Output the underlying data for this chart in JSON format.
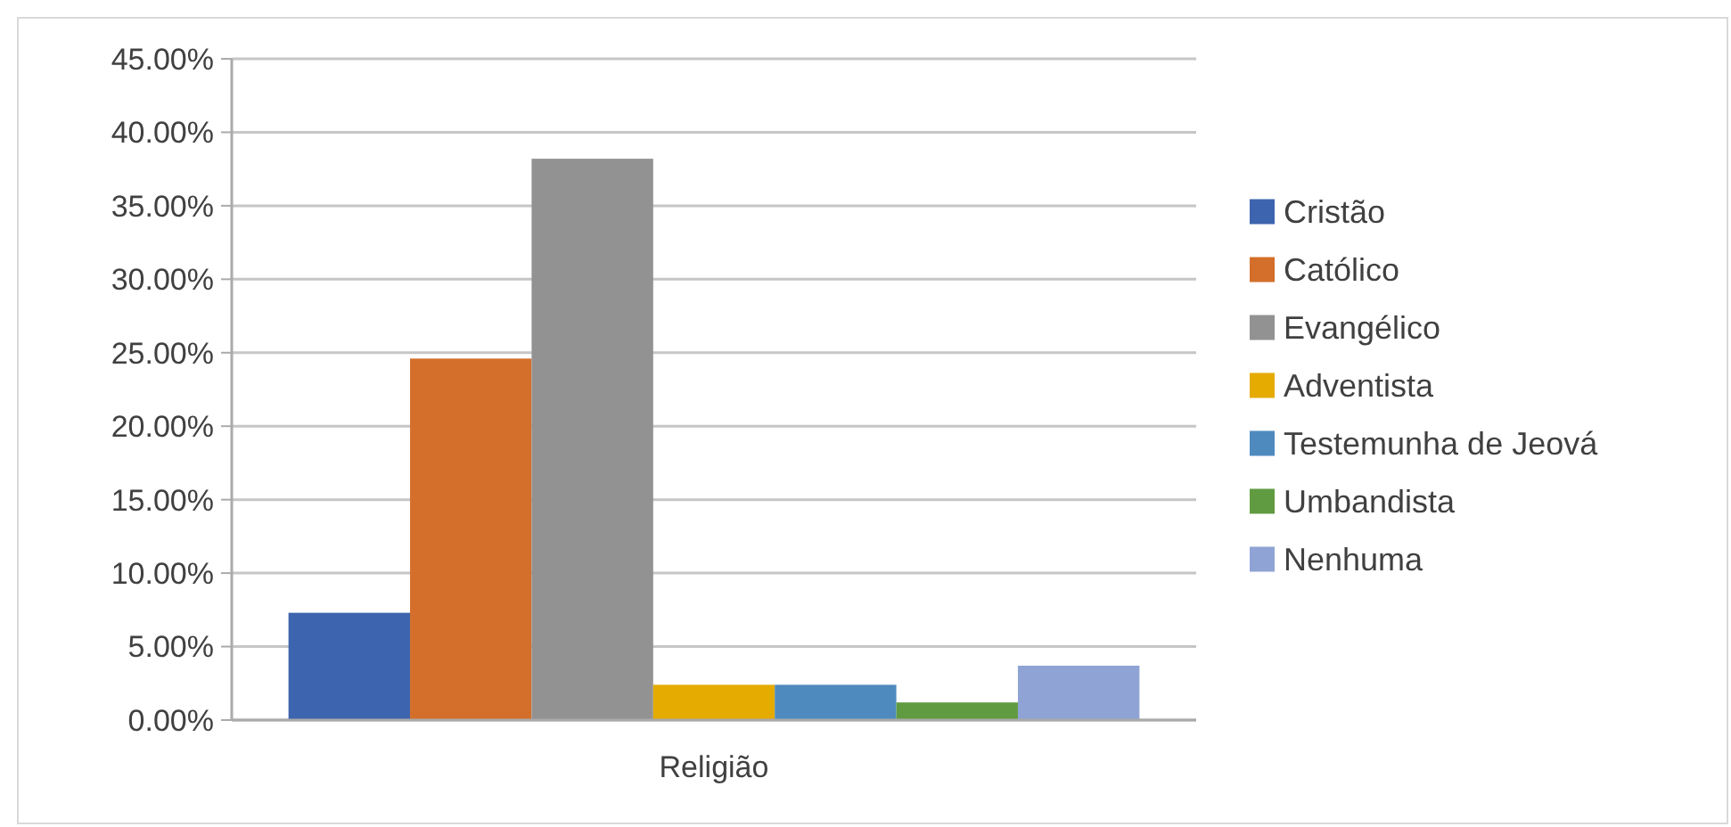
{
  "chart_data": {
    "type": "bar",
    "categories": [
      "Religião"
    ],
    "series": [
      {
        "name": "Cristão",
        "color": "#3d64ae",
        "values": [
          7.3
        ]
      },
      {
        "name": "Católico",
        "color": "#d36f2b",
        "values": [
          24.6
        ]
      },
      {
        "name": "Evangélico",
        "color": "#929292",
        "values": [
          38.2
        ]
      },
      {
        "name": "Adventista",
        "color": "#e5ab00",
        "values": [
          2.4
        ]
      },
      {
        "name": "Testemunha de Jeová",
        "color": "#4f8abf",
        "values": [
          2.4
        ]
      },
      {
        "name": "Umbandista",
        "color": "#619b41",
        "values": [
          1.2
        ]
      },
      {
        "name": "Nenhuma",
        "color": "#8fa3d4",
        "values": [
          3.7
        ]
      }
    ],
    "ylim": [
      0,
      45
    ],
    "yticks": [
      {
        "value": 0,
        "label": "0.00%"
      },
      {
        "value": 5,
        "label": "5.00%"
      },
      {
        "value": 10,
        "label": "10.00%"
      },
      {
        "value": 15,
        "label": "15.00%"
      },
      {
        "value": 20,
        "label": "20.00%"
      },
      {
        "value": 25,
        "label": "25.00%"
      },
      {
        "value": 30,
        "label": "30.00%"
      },
      {
        "value": 35,
        "label": "35.00%"
      },
      {
        "value": 40,
        "label": "40.00%"
      },
      {
        "value": 45,
        "label": "45.00%"
      }
    ],
    "grid": "y",
    "legend": "right"
  }
}
